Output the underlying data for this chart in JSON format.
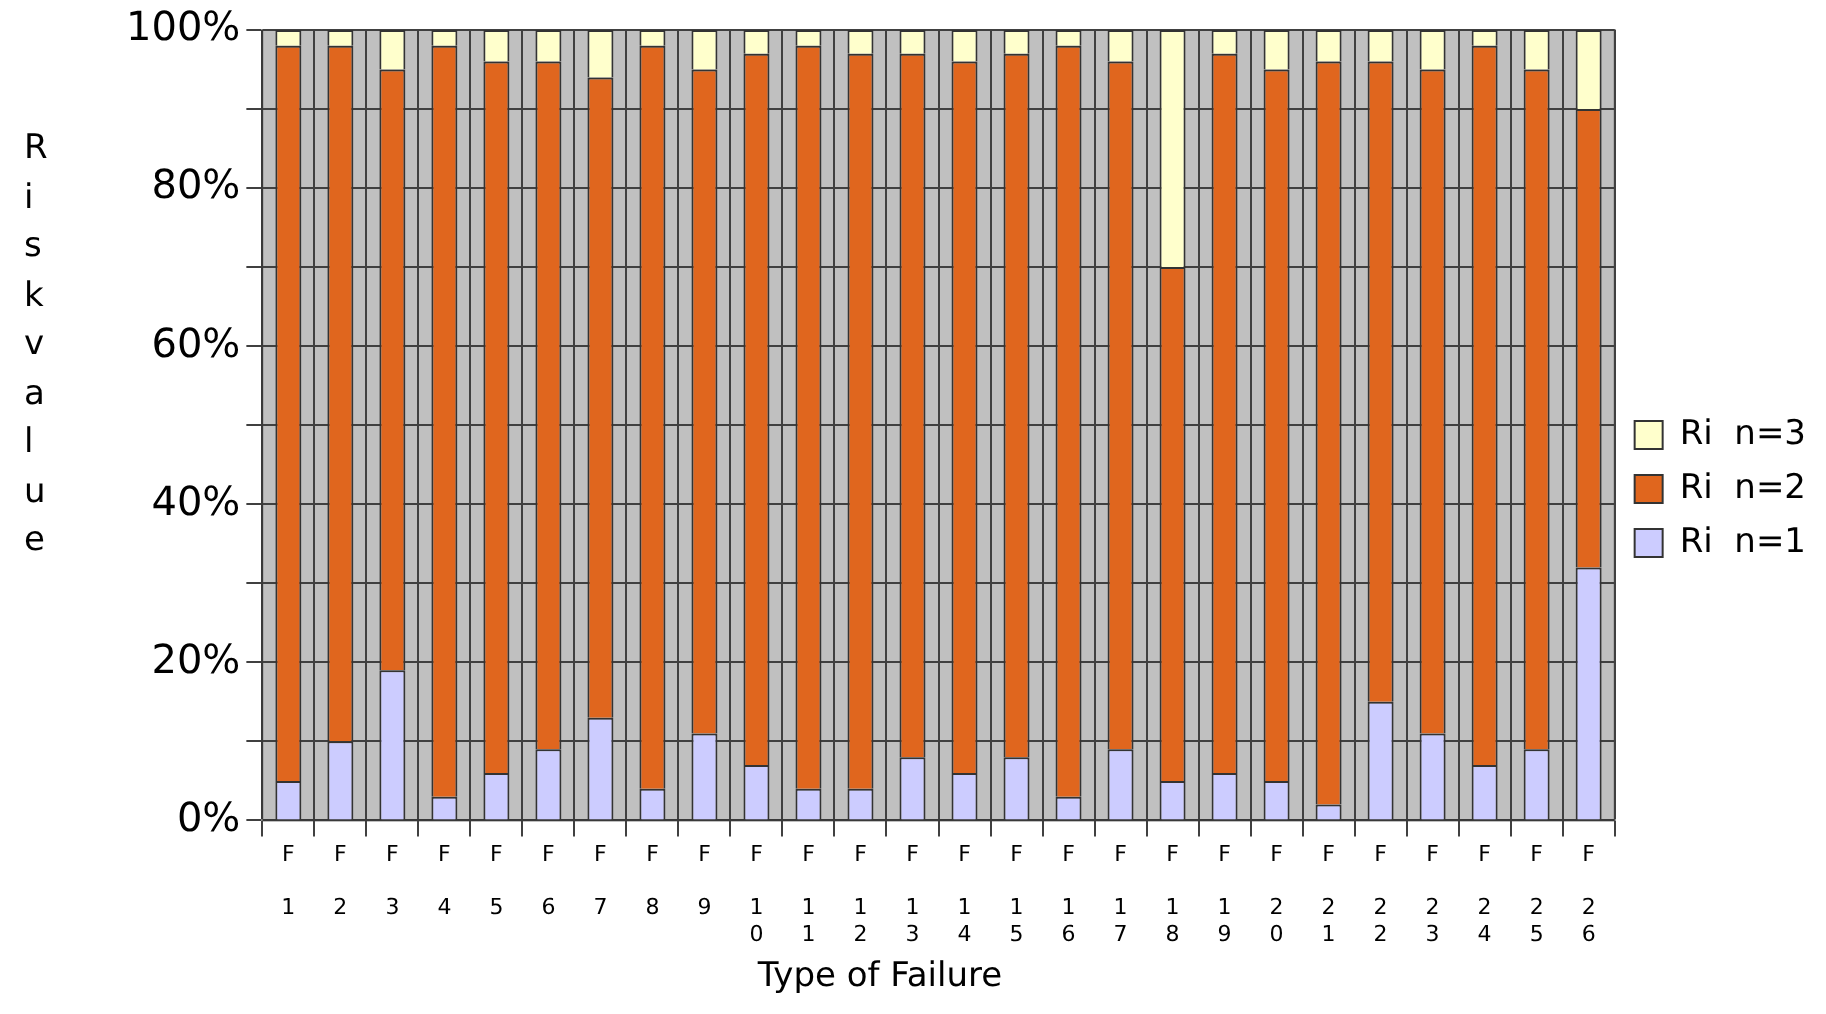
{
  "chart_data": {
    "type": "bar",
    "stacked": true,
    "xlabel": "Type of Failure",
    "ylabel": "Risk value",
    "categories": [
      "F1",
      "F2",
      "F3",
      "F4",
      "F5",
      "F6",
      "F7",
      "F8",
      "F9",
      "F10",
      "F11",
      "F12",
      "F13",
      "F14",
      "F15",
      "F16",
      "F17",
      "F18",
      "F19",
      "F20",
      "F21",
      "F22",
      "F23",
      "F24",
      "F25",
      "F26"
    ],
    "series": [
      {
        "name": "Ri  n=1",
        "color": "#ccccff",
        "values": [
          5,
          10,
          19,
          3,
          6,
          9,
          13,
          4,
          11,
          7,
          4,
          4,
          8,
          6,
          8,
          3,
          9,
          5,
          6,
          5,
          2,
          15,
          11,
          7,
          9,
          32
        ]
      },
      {
        "name": "Ri  n=2",
        "color": "#e0661e",
        "values": [
          93,
          88,
          76,
          95,
          90,
          87,
          81,
          94,
          84,
          90,
          94,
          93,
          89,
          90,
          89,
          95,
          87,
          65,
          91,
          90,
          94,
          81,
          84,
          91,
          86,
          58
        ]
      },
      {
        "name": "Ri  n=3",
        "color": "#ffffcc",
        "values": [
          2,
          2,
          5,
          2,
          4,
          4,
          6,
          2,
          5,
          3,
          2,
          3,
          3,
          4,
          3,
          2,
          4,
          30,
          3,
          5,
          4,
          4,
          5,
          2,
          5,
          10
        ]
      }
    ],
    "ylim": [
      0,
      100
    ],
    "yticks": [
      {
        "value": 0,
        "label": "0%"
      },
      {
        "value": 10,
        "label": null
      },
      {
        "value": 20,
        "label": "20%"
      },
      {
        "value": 30,
        "label": null
      },
      {
        "value": 40,
        "label": "40%"
      },
      {
        "value": 50,
        "label": null
      },
      {
        "value": 60,
        "label": "60%"
      },
      {
        "value": 70,
        "label": null
      },
      {
        "value": 80,
        "label": "80%"
      },
      {
        "value": 90,
        "label": null
      },
      {
        "value": 100,
        "label": "100%"
      }
    ],
    "grid": true,
    "legend": "right"
  }
}
